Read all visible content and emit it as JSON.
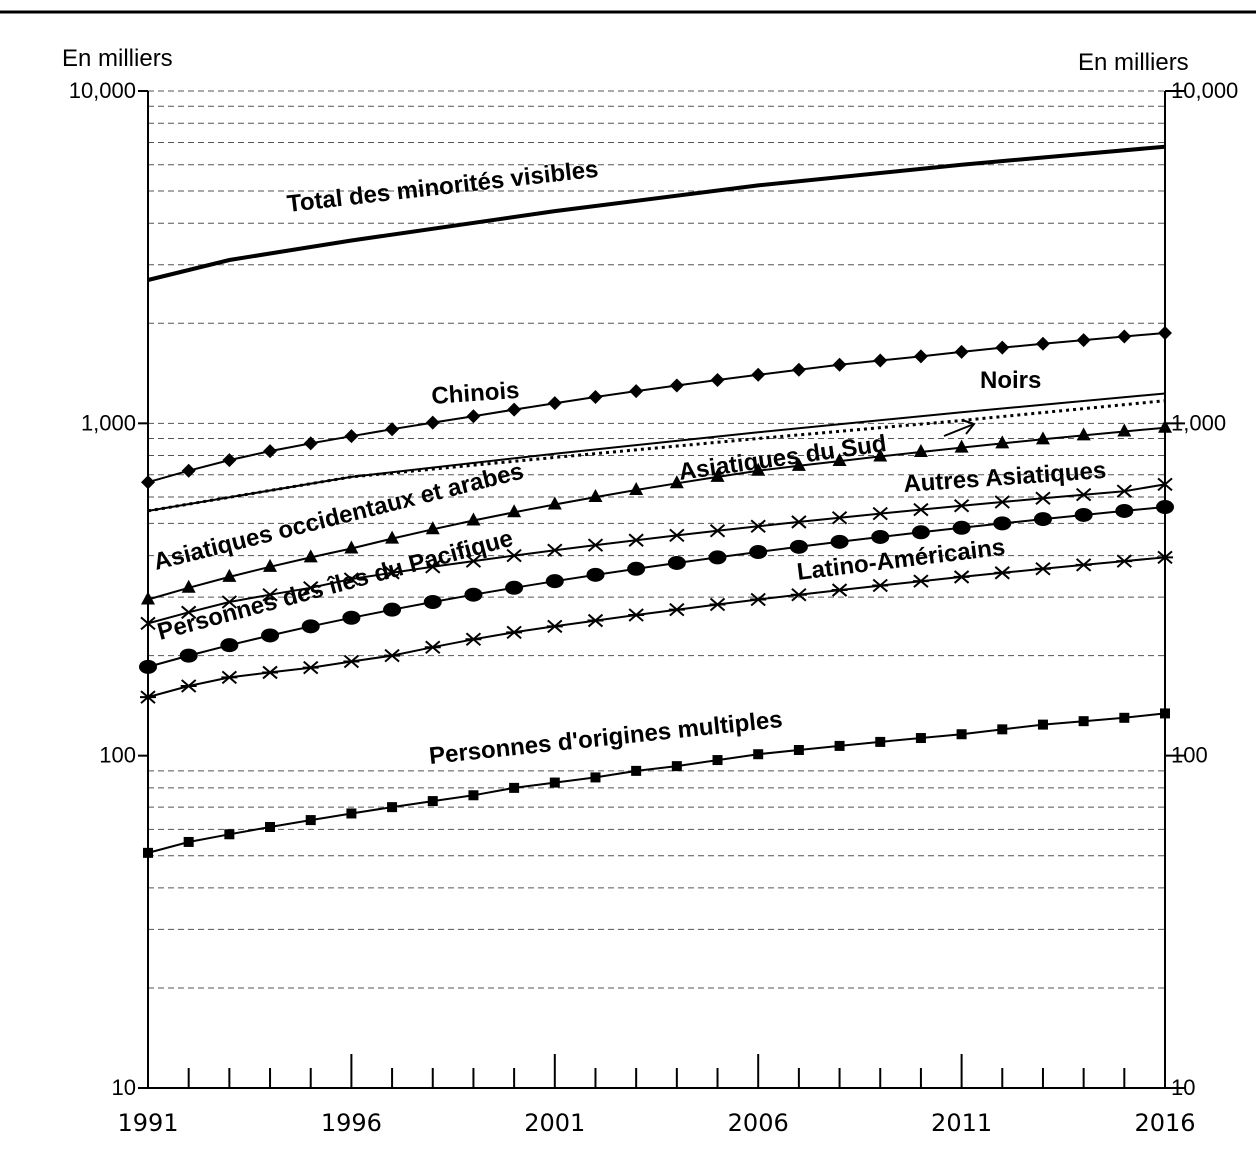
{
  "chart_data": {
    "type": "line",
    "y_scale": "log",
    "ylim": [
      10,
      10000
    ],
    "xlim": [
      1991,
      2016
    ],
    "grid": "horizontal dashed",
    "left_unit": "En milliers",
    "right_unit": "En milliers",
    "y_ticks": [
      {
        "value": 10,
        "label": "10"
      },
      {
        "value": 100,
        "label": "100"
      },
      {
        "value": 1000,
        "label": "1,000"
      },
      {
        "value": 10000,
        "label": "10,000"
      }
    ],
    "x_ticks": [
      {
        "value": 1991,
        "label": "1991"
      },
      {
        "value": 1996,
        "label": "1996"
      },
      {
        "value": 2001,
        "label": "2001"
      },
      {
        "value": 2006,
        "label": "2006"
      },
      {
        "value": 2011,
        "label": "2011"
      },
      {
        "value": 2016,
        "label": "2016"
      }
    ],
    "series": [
      {
        "name": "Total des minorités visibles",
        "marker": "none",
        "style": "thick",
        "x": [
          1991,
          1993,
          1996,
          2001,
          2006,
          2011,
          2016
        ],
        "values": [
          2700,
          3100,
          3550,
          4350,
          5200,
          6000,
          6800
        ]
      },
      {
        "name": "Chinois",
        "marker": "diamond",
        "x": [
          1991,
          1992,
          1993,
          1994,
          1995,
          1996,
          1997,
          1998,
          1999,
          2000,
          2001,
          2002,
          2003,
          2004,
          2005,
          2006,
          2007,
          2008,
          2009,
          2010,
          2011,
          2012,
          2013,
          2014,
          2015,
          2016
        ],
        "values": [
          665,
          720,
          775,
          825,
          870,
          915,
          960,
          1005,
          1050,
          1100,
          1150,
          1200,
          1250,
          1300,
          1350,
          1400,
          1450,
          1500,
          1545,
          1590,
          1640,
          1690,
          1735,
          1780,
          1825,
          1870
        ]
      },
      {
        "name": "Noirs",
        "marker": "none",
        "x": [
          1991,
          1996,
          2001,
          2006,
          2011,
          2016
        ],
        "values": [
          545,
          690,
          810,
          940,
          1080,
          1230
        ]
      },
      {
        "name": "Asiatiques du Sud",
        "marker": "none",
        "style": "dotted",
        "x": [
          1991,
          1996,
          2001,
          2006,
          2011,
          2016
        ],
        "values": [
          545,
          690,
          790,
          900,
          1020,
          1170
        ]
      },
      {
        "name": "Asiatiques occidentaux et arabes",
        "marker": "triangle",
        "x": [
          1991,
          1992,
          1993,
          1994,
          1995,
          1996,
          1997,
          1998,
          1999,
          2000,
          2001,
          2002,
          2003,
          2004,
          2005,
          2006,
          2007,
          2008,
          2009,
          2010,
          2011,
          2012,
          2013,
          2014,
          2015,
          2016
        ],
        "values": [
          295,
          320,
          345,
          370,
          395,
          420,
          450,
          480,
          510,
          540,
          570,
          600,
          630,
          660,
          690,
          720,
          745,
          770,
          795,
          820,
          845,
          870,
          895,
          920,
          945,
          970
        ]
      },
      {
        "name": "Autres Asiatiques",
        "marker": "x",
        "x": [
          1991,
          1992,
          1993,
          1994,
          1995,
          1996,
          1997,
          1998,
          1999,
          2000,
          2001,
          2002,
          2003,
          2004,
          2005,
          2006,
          2007,
          2008,
          2009,
          2010,
          2011,
          2012,
          2013,
          2014,
          2015,
          2016
        ],
        "values": [
          250,
          270,
          290,
          305,
          320,
          340,
          355,
          370,
          385,
          400,
          415,
          430,
          445,
          460,
          475,
          490,
          505,
          520,
          535,
          550,
          565,
          580,
          595,
          610,
          625,
          655
        ]
      },
      {
        "name": "Personnes des îles du Pacifique",
        "marker": "circle",
        "x": [
          1991,
          1992,
          1993,
          1994,
          1995,
          1996,
          1997,
          1998,
          1999,
          2000,
          2001,
          2002,
          2003,
          2004,
          2005,
          2006,
          2007,
          2008,
          2009,
          2010,
          2011,
          2012,
          2013,
          2014,
          2015,
          2016
        ],
        "values": [
          185,
          200,
          215,
          230,
          245,
          260,
          275,
          290,
          305,
          320,
          335,
          350,
          365,
          380,
          395,
          410,
          425,
          440,
          455,
          470,
          485,
          500,
          515,
          530,
          545,
          560
        ]
      },
      {
        "name": "Latino-Américains",
        "marker": "star",
        "x": [
          1991,
          1992,
          1993,
          1994,
          1995,
          1996,
          1997,
          1998,
          1999,
          2000,
          2001,
          2002,
          2003,
          2004,
          2005,
          2006,
          2007,
          2008,
          2009,
          2010,
          2011,
          2012,
          2013,
          2014,
          2015,
          2016
        ],
        "values": [
          150,
          162,
          172,
          178,
          184,
          192,
          200,
          212,
          224,
          235,
          245,
          255,
          265,
          275,
          285,
          295,
          305,
          315,
          325,
          335,
          345,
          355,
          365,
          375,
          385,
          395
        ]
      },
      {
        "name": "Personnes d'origines multiples",
        "marker": "square",
        "x": [
          1991,
          1992,
          1993,
          1994,
          1995,
          1996,
          1997,
          1998,
          1999,
          2000,
          2001,
          2002,
          2003,
          2004,
          2005,
          2006,
          2007,
          2008,
          2009,
          2010,
          2011,
          2012,
          2013,
          2014,
          2015,
          2016
        ],
        "values": [
          51,
          55,
          58,
          61,
          64,
          67,
          70,
          73,
          76,
          80,
          83,
          86,
          90,
          93,
          97,
          101,
          104,
          107,
          110,
          113,
          116,
          120,
          124,
          127,
          130,
          134
        ]
      }
    ]
  }
}
